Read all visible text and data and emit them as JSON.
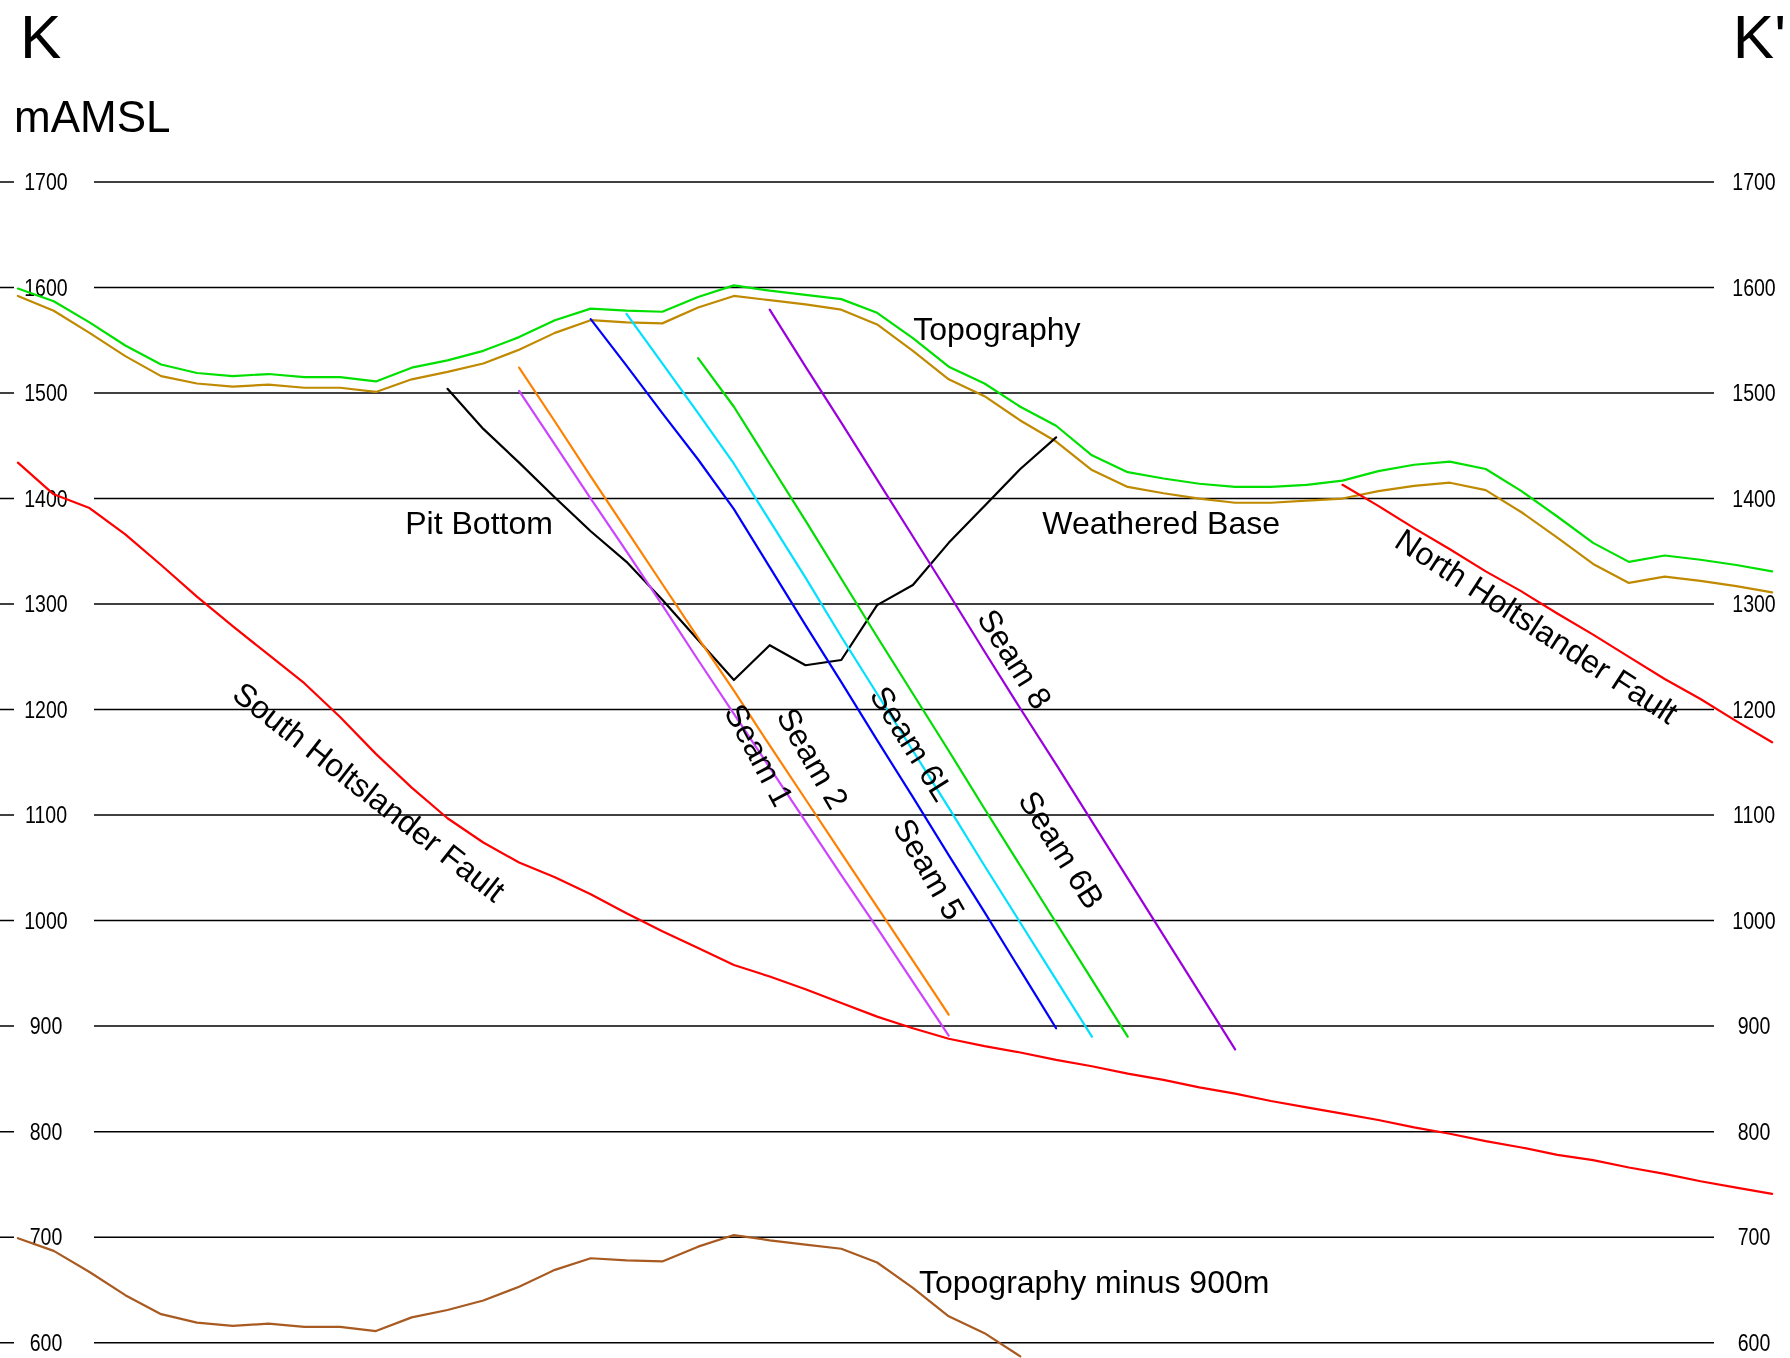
{
  "chart_data": {
    "type": "line",
    "ylabel": "mAMSL",
    "annotations": [
      "K",
      "K'"
    ],
    "categories": [
      null,
      null,
      null,
      null,
      null,
      null,
      null,
      null,
      null,
      null,
      null,
      null,
      null,
      null,
      null,
      null,
      null,
      null,
      null,
      null,
      null,
      null,
      null,
      null,
      null,
      null,
      null,
      null,
      null,
      null,
      null,
      null,
      null,
      null,
      null,
      null,
      null,
      null,
      null,
      null,
      null,
      null,
      null,
      null,
      null,
      null,
      null,
      null,
      null,
      null
    ],
    "ylim": [
      585,
      1872
    ],
    "yticks": [
      600,
      700,
      800,
      900,
      1000,
      1100,
      1200,
      1300,
      1400,
      1500,
      1600,
      1700
    ],
    "y2lim": [
      585,
      1872
    ],
    "y2ticks": [
      600,
      700,
      800,
      900,
      1000,
      1100,
      1200,
      1300,
      1400,
      1500,
      1600,
      1700
    ],
    "grid": "y",
    "legend": false,
    "marker": "none",
    "line_style": "solid",
    "series": [
      {
        "name": "Topography",
        "color": "#00e000",
        "values": [
          1599,
          1587,
          1567,
          1545,
          1527,
          1519,
          1516,
          1518,
          1515,
          1515,
          1511,
          1524,
          1531,
          1540,
          1553,
          1569,
          1580,
          1578,
          1577,
          1591,
          1602,
          1597,
          1593,
          1589,
          1576,
          1552,
          1525,
          1509,
          1487,
          1469,
          1441,
          1425,
          1419,
          1414,
          1411,
          1411,
          1413,
          1417,
          1426,
          1432,
          1435,
          1428,
          1407,
          1383,
          1358,
          1340,
          1346,
          1342,
          1337,
          1331
        ]
      },
      {
        "name": "Weathered Base",
        "color": "#c08a00",
        "values": [
          1592,
          1578,
          1557,
          1535,
          1516,
          1509,
          1506,
          1508,
          1505,
          1505,
          1501,
          1513,
          1520,
          1528,
          1541,
          1557,
          1569,
          1567,
          1566,
          1581,
          1592,
          1588,
          1584,
          1579,
          1565,
          1540,
          1513,
          1497,
          1474,
          1454,
          1427,
          1411,
          1405,
          1400,
          1396,
          1396,
          1398,
          1400,
          1407,
          1412,
          1415,
          1408,
          1387,
          1363,
          1338,
          1320,
          1326,
          1322,
          1317,
          1311
        ]
      },
      {
        "name": "Pit Bottom",
        "color": "#000000",
        "values": [
          null,
          null,
          null,
          null,
          null,
          null,
          null,
          null,
          null,
          null,
          null,
          null,
          1504,
          1466,
          1434,
          1401,
          1369,
          1340,
          1304,
          1266,
          1228,
          1261,
          1242,
          1247,
          1299,
          1318,
          1358,
          1393,
          1428,
          1458,
          null,
          null,
          null,
          null,
          null,
          null,
          null,
          null,
          null,
          null,
          null,
          null,
          null,
          null,
          null,
          null,
          null,
          null,
          null,
          null
        ]
      },
      {
        "name": "Topography minus 900m",
        "color": "#a85a20",
        "values": [
          699,
          687,
          667,
          645,
          627,
          619,
          616,
          618,
          615,
          615,
          611,
          624,
          631,
          640,
          653,
          669,
          680,
          678,
          677,
          691,
          702,
          697,
          693,
          689,
          676,
          652,
          625,
          609,
          587,
          null,
          null,
          null,
          null,
          null,
          null,
          null,
          null,
          null,
          null,
          null,
          null,
          null,
          null,
          null,
          null,
          null,
          null,
          null,
          null,
          null
        ]
      },
      {
        "name": "South Holtslander Fault",
        "color": "#ff0000",
        "values": [
          1434,
          1404,
          1391,
          1366,
          1337,
          1307,
          1279,
          1252,
          1225,
          1193,
          1158,
          1126,
          1097,
          1074,
          1055,
          1041,
          1025,
          1007,
          990,
          974,
          958,
          947,
          935,
          922,
          909,
          898,
          888,
          881,
          875,
          868,
          862,
          855,
          849,
          842,
          836,
          829,
          823,
          817,
          811,
          804,
          798,
          791,
          785,
          778,
          773,
          766,
          760,
          753,
          747,
          741
        ]
      },
      {
        "name": "North Holtslander Fault",
        "color": "#ff0000",
        "values": [
          null,
          null,
          null,
          null,
          null,
          null,
          null,
          null,
          null,
          null,
          null,
          null,
          null,
          null,
          null,
          null,
          null,
          null,
          null,
          null,
          null,
          null,
          null,
          null,
          null,
          null,
          null,
          null,
          null,
          null,
          null,
          null,
          null,
          null,
          null,
          null,
          null,
          1413,
          1393,
          1372,
          1352,
          1331,
          1312,
          1291,
          1271,
          1250,
          1229,
          1210,
          1189,
          1169
        ]
      },
      {
        "name": "Seam 1",
        "color": "#cc44ff",
        "values": [
          null,
          null,
          null,
          null,
          null,
          null,
          null,
          null,
          null,
          null,
          null,
          null,
          null,
          null,
          1502,
          1451,
          1400,
          1350,
          1299,
          1247,
          1196,
          1145,
          1094,
          1043,
          993,
          942,
          891,
          null,
          null,
          null,
          null,
          null,
          null,
          null,
          null,
          null,
          null,
          null,
          null,
          null,
          null,
          null,
          null,
          null,
          null,
          null,
          null,
          null,
          null,
          null
        ]
      },
      {
        "name": "Seam 2",
        "color": "#ff8000",
        "values": [
          null,
          null,
          null,
          null,
          null,
          null,
          null,
          null,
          null,
          null,
          null,
          null,
          null,
          null,
          1524,
          1473,
          1421,
          1370,
          1319,
          1268,
          1218,
          1166,
          1115,
          1064,
          1013,
          962,
          911,
          null,
          null,
          null,
          null,
          null,
          null,
          null,
          null,
          null,
          null,
          null,
          null,
          null,
          null,
          null,
          null,
          null,
          null,
          null,
          null,
          null,
          null,
          null
        ]
      },
      {
        "name": "Seam 5",
        "color": "#0000ff",
        "values": [
          null,
          null,
          null,
          null,
          null,
          null,
          null,
          null,
          null,
          null,
          null,
          null,
          null,
          null,
          null,
          null,
          1570,
          1526,
          1481,
          1437,
          1390,
          1335,
          1280,
          1226,
          1171,
          1117,
          1062,
          1008,
          953,
          898,
          null,
          null,
          null,
          null,
          null,
          null,
          null,
          null,
          null,
          null,
          null,
          null,
          null,
          null,
          null,
          null,
          null,
          null,
          null,
          null
        ]
      },
      {
        "name": "Seam 6L",
        "color": "#00e0ff",
        "values": [
          null,
          null,
          null,
          null,
          null,
          null,
          null,
          null,
          null,
          null,
          null,
          null,
          null,
          null,
          null,
          null,
          null,
          1575,
          1528,
          1481,
          1433,
          1379,
          1325,
          1269,
          1215,
          1161,
          1107,
          1052,
          998,
          944,
          890,
          null,
          null,
          null,
          null,
          null,
          null,
          null,
          null,
          null,
          null,
          null,
          null,
          null,
          null,
          null,
          null,
          null,
          null,
          null
        ]
      },
      {
        "name": "Seam 6B",
        "color": "#00dd00",
        "values": [
          null,
          null,
          null,
          null,
          null,
          null,
          null,
          null,
          null,
          null,
          null,
          null,
          null,
          null,
          null,
          null,
          null,
          null,
          null,
          1533,
          1487,
          1433,
          1379,
          1324,
          1269,
          1215,
          1161,
          1106,
          1052,
          998,
          944,
          890,
          null,
          null,
          null,
          null,
          null,
          null,
          null,
          null,
          null,
          null,
          null,
          null,
          null,
          null,
          null,
          null,
          null,
          null
        ]
      },
      {
        "name": "Seam 8",
        "color": "#9900dd",
        "values": [
          null,
          null,
          null,
          null,
          null,
          null,
          null,
          null,
          null,
          null,
          null,
          null,
          null,
          null,
          null,
          null,
          null,
          null,
          null,
          null,
          null,
          1579,
          1525,
          1472,
          1418,
          1364,
          1310,
          1255,
          1201,
          1148,
          1094,
          1040,
          986,
          932,
          878,
          null,
          null,
          null,
          null,
          null,
          null,
          null,
          null,
          null,
          null,
          null,
          null,
          null,
          null,
          null
        ]
      }
    ]
  }
}
